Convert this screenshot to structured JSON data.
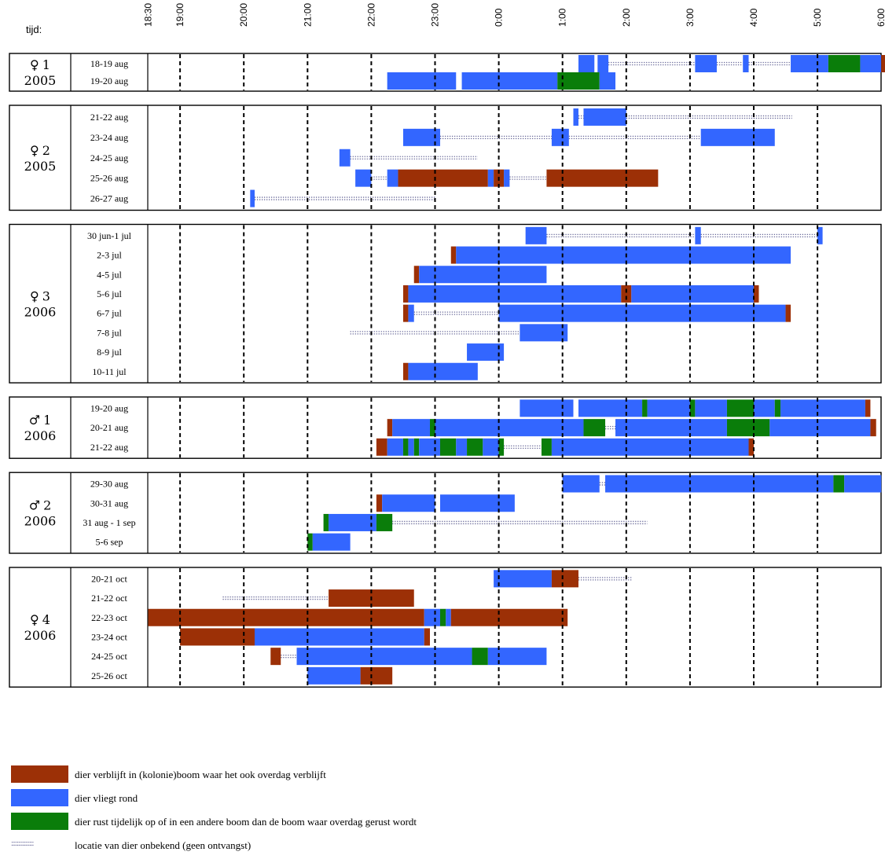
{
  "colors": {
    "boom": "#9c3006",
    "vliegt": "#3366ff",
    "rust": "#0a7d0a",
    "unknown": "#6b6b9a"
  },
  "chart_data": {
    "type": "timeline",
    "time_label": "tijd:",
    "time_unit": "hours after 18:00 (clock time)",
    "x_ticks": [
      {
        "t": 0.5,
        "label": "18:30"
      },
      {
        "t": 1,
        "label": "19:00"
      },
      {
        "t": 2,
        "label": "20:00"
      },
      {
        "t": 3,
        "label": "21:00"
      },
      {
        "t": 4,
        "label": "22:00"
      },
      {
        "t": 5,
        "label": "23:00"
      },
      {
        "t": 6,
        "label": "0:00"
      },
      {
        "t": 7,
        "label": "1:00"
      },
      {
        "t": 8,
        "label": "2:00"
      },
      {
        "t": 9,
        "label": "3:00"
      },
      {
        "t": 10,
        "label": "4:00"
      },
      {
        "t": 11,
        "label": "5:00"
      },
      {
        "t": 12,
        "label": "6:00"
      }
    ],
    "xlim": [
      0.5,
      12.3
    ],
    "legend": [
      {
        "key": "boom",
        "text": "dier verblijft in (kolonie)boom waar het ook overdag verblijft"
      },
      {
        "key": "vliegt",
        "text": "dier vliegt rond"
      },
      {
        "key": "rust",
        "text": "dier rust tijdelijk op of in een andere boom dan de boom waar overdag gerust wordt"
      },
      {
        "key": "unknown",
        "swatch_text": "::::::::::::::::",
        "text": "locatie van dier onbekend (geen ontvangst)"
      }
    ],
    "groups": [
      {
        "symbol": "♀",
        "number": "1",
        "year": "2005",
        "rows": [
          {
            "date": "18-19 aug",
            "segments": [
              [
                7.25,
                7.5,
                "vliegt"
              ],
              [
                7.55,
                7.72,
                "vliegt"
              ],
              [
                7.72,
                9.08,
                "unknown"
              ],
              [
                9.08,
                9.42,
                "vliegt"
              ],
              [
                9.42,
                9.83,
                "unknown"
              ],
              [
                9.83,
                9.92,
                "vliegt"
              ],
              [
                9.92,
                10.58,
                "unknown"
              ],
              [
                10.58,
                11.17,
                "vliegt"
              ],
              [
                11.17,
                11.67,
                "rust"
              ],
              [
                11.67,
                12.0,
                "vliegt"
              ],
              [
                12.0,
                12.08,
                "boom"
              ]
            ]
          },
          {
            "date": "19-20 aug",
            "segments": [
              [
                4.25,
                5.33,
                "vliegt"
              ],
              [
                5.42,
                6.92,
                "vliegt"
              ],
              [
                6.92,
                7.58,
                "rust"
              ],
              [
                7.58,
                7.83,
                "vliegt"
              ]
            ]
          }
        ]
      },
      {
        "symbol": "♀",
        "number": "2",
        "year": "2005",
        "rows": [
          {
            "date": "21-22 aug",
            "segments": [
              [
                7.17,
                7.25,
                "vliegt"
              ],
              [
                7.25,
                7.33,
                "unknown"
              ],
              [
                7.33,
                8.0,
                "vliegt"
              ],
              [
                8.0,
                10.6,
                "unknown"
              ]
            ]
          },
          {
            "date": "23-24 aug",
            "segments": [
              [
                4.5,
                5.08,
                "vliegt"
              ],
              [
                5.08,
                6.83,
                "unknown"
              ],
              [
                6.83,
                7.1,
                "vliegt"
              ],
              [
                7.1,
                9.17,
                "unknown"
              ],
              [
                9.17,
                10.33,
                "vliegt"
              ]
            ]
          },
          {
            "date": "24-25 aug",
            "segments": [
              [
                3.5,
                3.67,
                "vliegt"
              ],
              [
                3.67,
                5.67,
                "unknown"
              ]
            ]
          },
          {
            "date": "25-26 aug",
            "segments": [
              [
                3.75,
                4.0,
                "vliegt"
              ],
              [
                4.0,
                4.25,
                "unknown"
              ],
              [
                4.25,
                4.42,
                "vliegt"
              ],
              [
                4.42,
                5.83,
                "boom"
              ],
              [
                5.83,
                5.92,
                "vliegt"
              ],
              [
                5.92,
                6.08,
                "boom"
              ],
              [
                6.08,
                6.17,
                "vliegt"
              ],
              [
                6.17,
                6.75,
                "unknown"
              ],
              [
                6.75,
                8.5,
                "boom"
              ]
            ]
          },
          {
            "date": "26-27 aug",
            "segments": [
              [
                2.1,
                2.17,
                "vliegt"
              ],
              [
                2.17,
                5.0,
                "unknown"
              ]
            ]
          }
        ]
      },
      {
        "symbol": "♀",
        "number": "3",
        "year": "2006",
        "rows": [
          {
            "date": "30 jun-1 jul",
            "segments": [
              [
                6.42,
                6.75,
                "vliegt"
              ],
              [
                6.75,
                9.08,
                "unknown"
              ],
              [
                9.08,
                9.17,
                "vliegt"
              ],
              [
                9.17,
                11.0,
                "unknown"
              ],
              [
                11.0,
                11.08,
                "vliegt"
              ]
            ]
          },
          {
            "date": "2-3 jul",
            "segments": [
              [
                5.25,
                5.33,
                "boom"
              ],
              [
                5.33,
                10.58,
                "vliegt"
              ]
            ]
          },
          {
            "date": "4-5 jul",
            "segments": [
              [
                4.67,
                4.75,
                "boom"
              ],
              [
                4.75,
                6.75,
                "vliegt"
              ]
            ]
          },
          {
            "date": "5-6 jul",
            "segments": [
              [
                4.5,
                4.58,
                "boom"
              ],
              [
                4.58,
                7.92,
                "vliegt"
              ],
              [
                7.92,
                8.08,
                "boom"
              ],
              [
                8.08,
                10.0,
                "vliegt"
              ],
              [
                10.0,
                10.08,
                "boom"
              ]
            ]
          },
          {
            "date": "6-7 jul",
            "segments": [
              [
                4.5,
                4.58,
                "boom"
              ],
              [
                4.58,
                4.67,
                "vliegt"
              ],
              [
                4.67,
                6.0,
                "unknown"
              ],
              [
                6.0,
                10.5,
                "vliegt"
              ],
              [
                10.5,
                10.58,
                "boom"
              ]
            ]
          },
          {
            "date": "7-8 jul",
            "segments": [
              [
                3.67,
                6.33,
                "unknown"
              ],
              [
                6.33,
                7.08,
                "vliegt"
              ]
            ]
          },
          {
            "date": "8-9 jul",
            "segments": [
              [
                5.5,
                6.08,
                "vliegt"
              ]
            ]
          },
          {
            "date": "10-11 jul",
            "segments": [
              [
                4.5,
                4.58,
                "boom"
              ],
              [
                4.58,
                5.67,
                "vliegt"
              ]
            ]
          }
        ]
      },
      {
        "symbol": "♂",
        "number": "1",
        "year": "2006",
        "rows": [
          {
            "date": "19-20 aug",
            "segments": [
              [
                6.33,
                7.17,
                "vliegt"
              ],
              [
                7.25,
                8.25,
                "vliegt"
              ],
              [
                8.25,
                8.33,
                "rust"
              ],
              [
                8.33,
                9.0,
                "vliegt"
              ],
              [
                9.0,
                9.08,
                "rust"
              ],
              [
                9.08,
                9.58,
                "vliegt"
              ],
              [
                9.58,
                10.0,
                "rust"
              ],
              [
                10.0,
                10.33,
                "vliegt"
              ],
              [
                10.33,
                10.42,
                "rust"
              ],
              [
                10.42,
                11.75,
                "vliegt"
              ],
              [
                11.75,
                11.83,
                "boom"
              ]
            ]
          },
          {
            "date": "20-21 aug",
            "segments": [
              [
                4.25,
                4.33,
                "boom"
              ],
              [
                4.33,
                4.92,
                "vliegt"
              ],
              [
                4.92,
                5.0,
                "rust"
              ],
              [
                5.0,
                7.33,
                "vliegt"
              ],
              [
                7.33,
                7.67,
                "rust"
              ],
              [
                7.67,
                7.83,
                "unknown"
              ],
              [
                7.83,
                9.58,
                "vliegt"
              ],
              [
                9.58,
                10.25,
                "rust"
              ],
              [
                10.25,
                11.83,
                "vliegt"
              ],
              [
                11.83,
                11.92,
                "boom"
              ]
            ]
          },
          {
            "date": "21-22 aug",
            "segments": [
              [
                4.08,
                4.25,
                "boom"
              ],
              [
                4.25,
                4.5,
                "vliegt"
              ],
              [
                4.5,
                4.58,
                "rust"
              ],
              [
                4.58,
                4.67,
                "vliegt"
              ],
              [
                4.67,
                4.75,
                "rust"
              ],
              [
                4.75,
                5.08,
                "vliegt"
              ],
              [
                5.08,
                5.33,
                "rust"
              ],
              [
                5.33,
                5.5,
                "vliegt"
              ],
              [
                5.5,
                5.75,
                "rust"
              ],
              [
                5.75,
                6.0,
                "vliegt"
              ],
              [
                6.0,
                6.08,
                "rust"
              ],
              [
                6.08,
                6.67,
                "unknown"
              ],
              [
                6.67,
                6.83,
                "rust"
              ],
              [
                6.83,
                9.92,
                "vliegt"
              ],
              [
                9.92,
                10.0,
                "boom"
              ]
            ]
          }
        ]
      },
      {
        "symbol": "♂",
        "number": "2",
        "year": "2006",
        "rows": [
          {
            "date": "29-30 aug",
            "segments": [
              [
                7.0,
                7.58,
                "vliegt"
              ],
              [
                7.58,
                7.67,
                "unknown"
              ],
              [
                7.67,
                11.25,
                "vliegt"
              ],
              [
                11.25,
                11.42,
                "rust"
              ],
              [
                11.42,
                12.0,
                "vliegt"
              ]
            ]
          },
          {
            "date": "30-31 aug",
            "segments": [
              [
                4.08,
                4.17,
                "boom"
              ],
              [
                4.17,
                5.0,
                "vliegt"
              ],
              [
                5.08,
                6.25,
                "vliegt"
              ]
            ]
          },
          {
            "date": "31 aug - 1 sep",
            "segments": [
              [
                3.25,
                3.33,
                "rust"
              ],
              [
                3.33,
                4.08,
                "vliegt"
              ],
              [
                4.08,
                4.33,
                "rust"
              ],
              [
                4.33,
                8.33,
                "unknown"
              ]
            ]
          },
          {
            "date": "5-6 sep",
            "segments": [
              [
                3.0,
                3.08,
                "rust"
              ],
              [
                3.08,
                3.67,
                "vliegt"
              ]
            ]
          }
        ]
      },
      {
        "symbol": "♀",
        "number": "4",
        "year": "2006",
        "rows": [
          {
            "date": "20-21 oct",
            "segments": [
              [
                5.92,
                6.83,
                "vliegt"
              ],
              [
                6.83,
                7.25,
                "boom"
              ],
              [
                7.25,
                8.08,
                "unknown"
              ]
            ]
          },
          {
            "date": "21-22 oct",
            "segments": [
              [
                1.67,
                3.33,
                "unknown"
              ],
              [
                3.33,
                4.67,
                "boom"
              ]
            ]
          },
          {
            "date": "22-23 oct",
            "segments": [
              [
                0.5,
                4.83,
                "boom"
              ],
              [
                4.83,
                5.08,
                "vliegt"
              ],
              [
                5.08,
                5.17,
                "rust"
              ],
              [
                5.17,
                5.25,
                "vliegt"
              ],
              [
                5.25,
                7.08,
                "boom"
              ]
            ]
          },
          {
            "date": "23-24 oct",
            "segments": [
              [
                1.0,
                2.17,
                "boom"
              ],
              [
                2.17,
                4.83,
                "vliegt"
              ],
              [
                4.83,
                4.92,
                "boom"
              ]
            ]
          },
          {
            "date": "24-25 oct",
            "segments": [
              [
                2.42,
                2.58,
                "boom"
              ],
              [
                2.58,
                2.83,
                "unknown"
              ],
              [
                2.83,
                5.58,
                "vliegt"
              ],
              [
                5.58,
                5.83,
                "rust"
              ],
              [
                5.83,
                6.75,
                "vliegt"
              ]
            ]
          },
          {
            "date": "25-26 oct",
            "segments": [
              [
                3.0,
                3.83,
                "vliegt"
              ],
              [
                3.83,
                4.33,
                "boom"
              ]
            ]
          }
        ]
      }
    ]
  }
}
